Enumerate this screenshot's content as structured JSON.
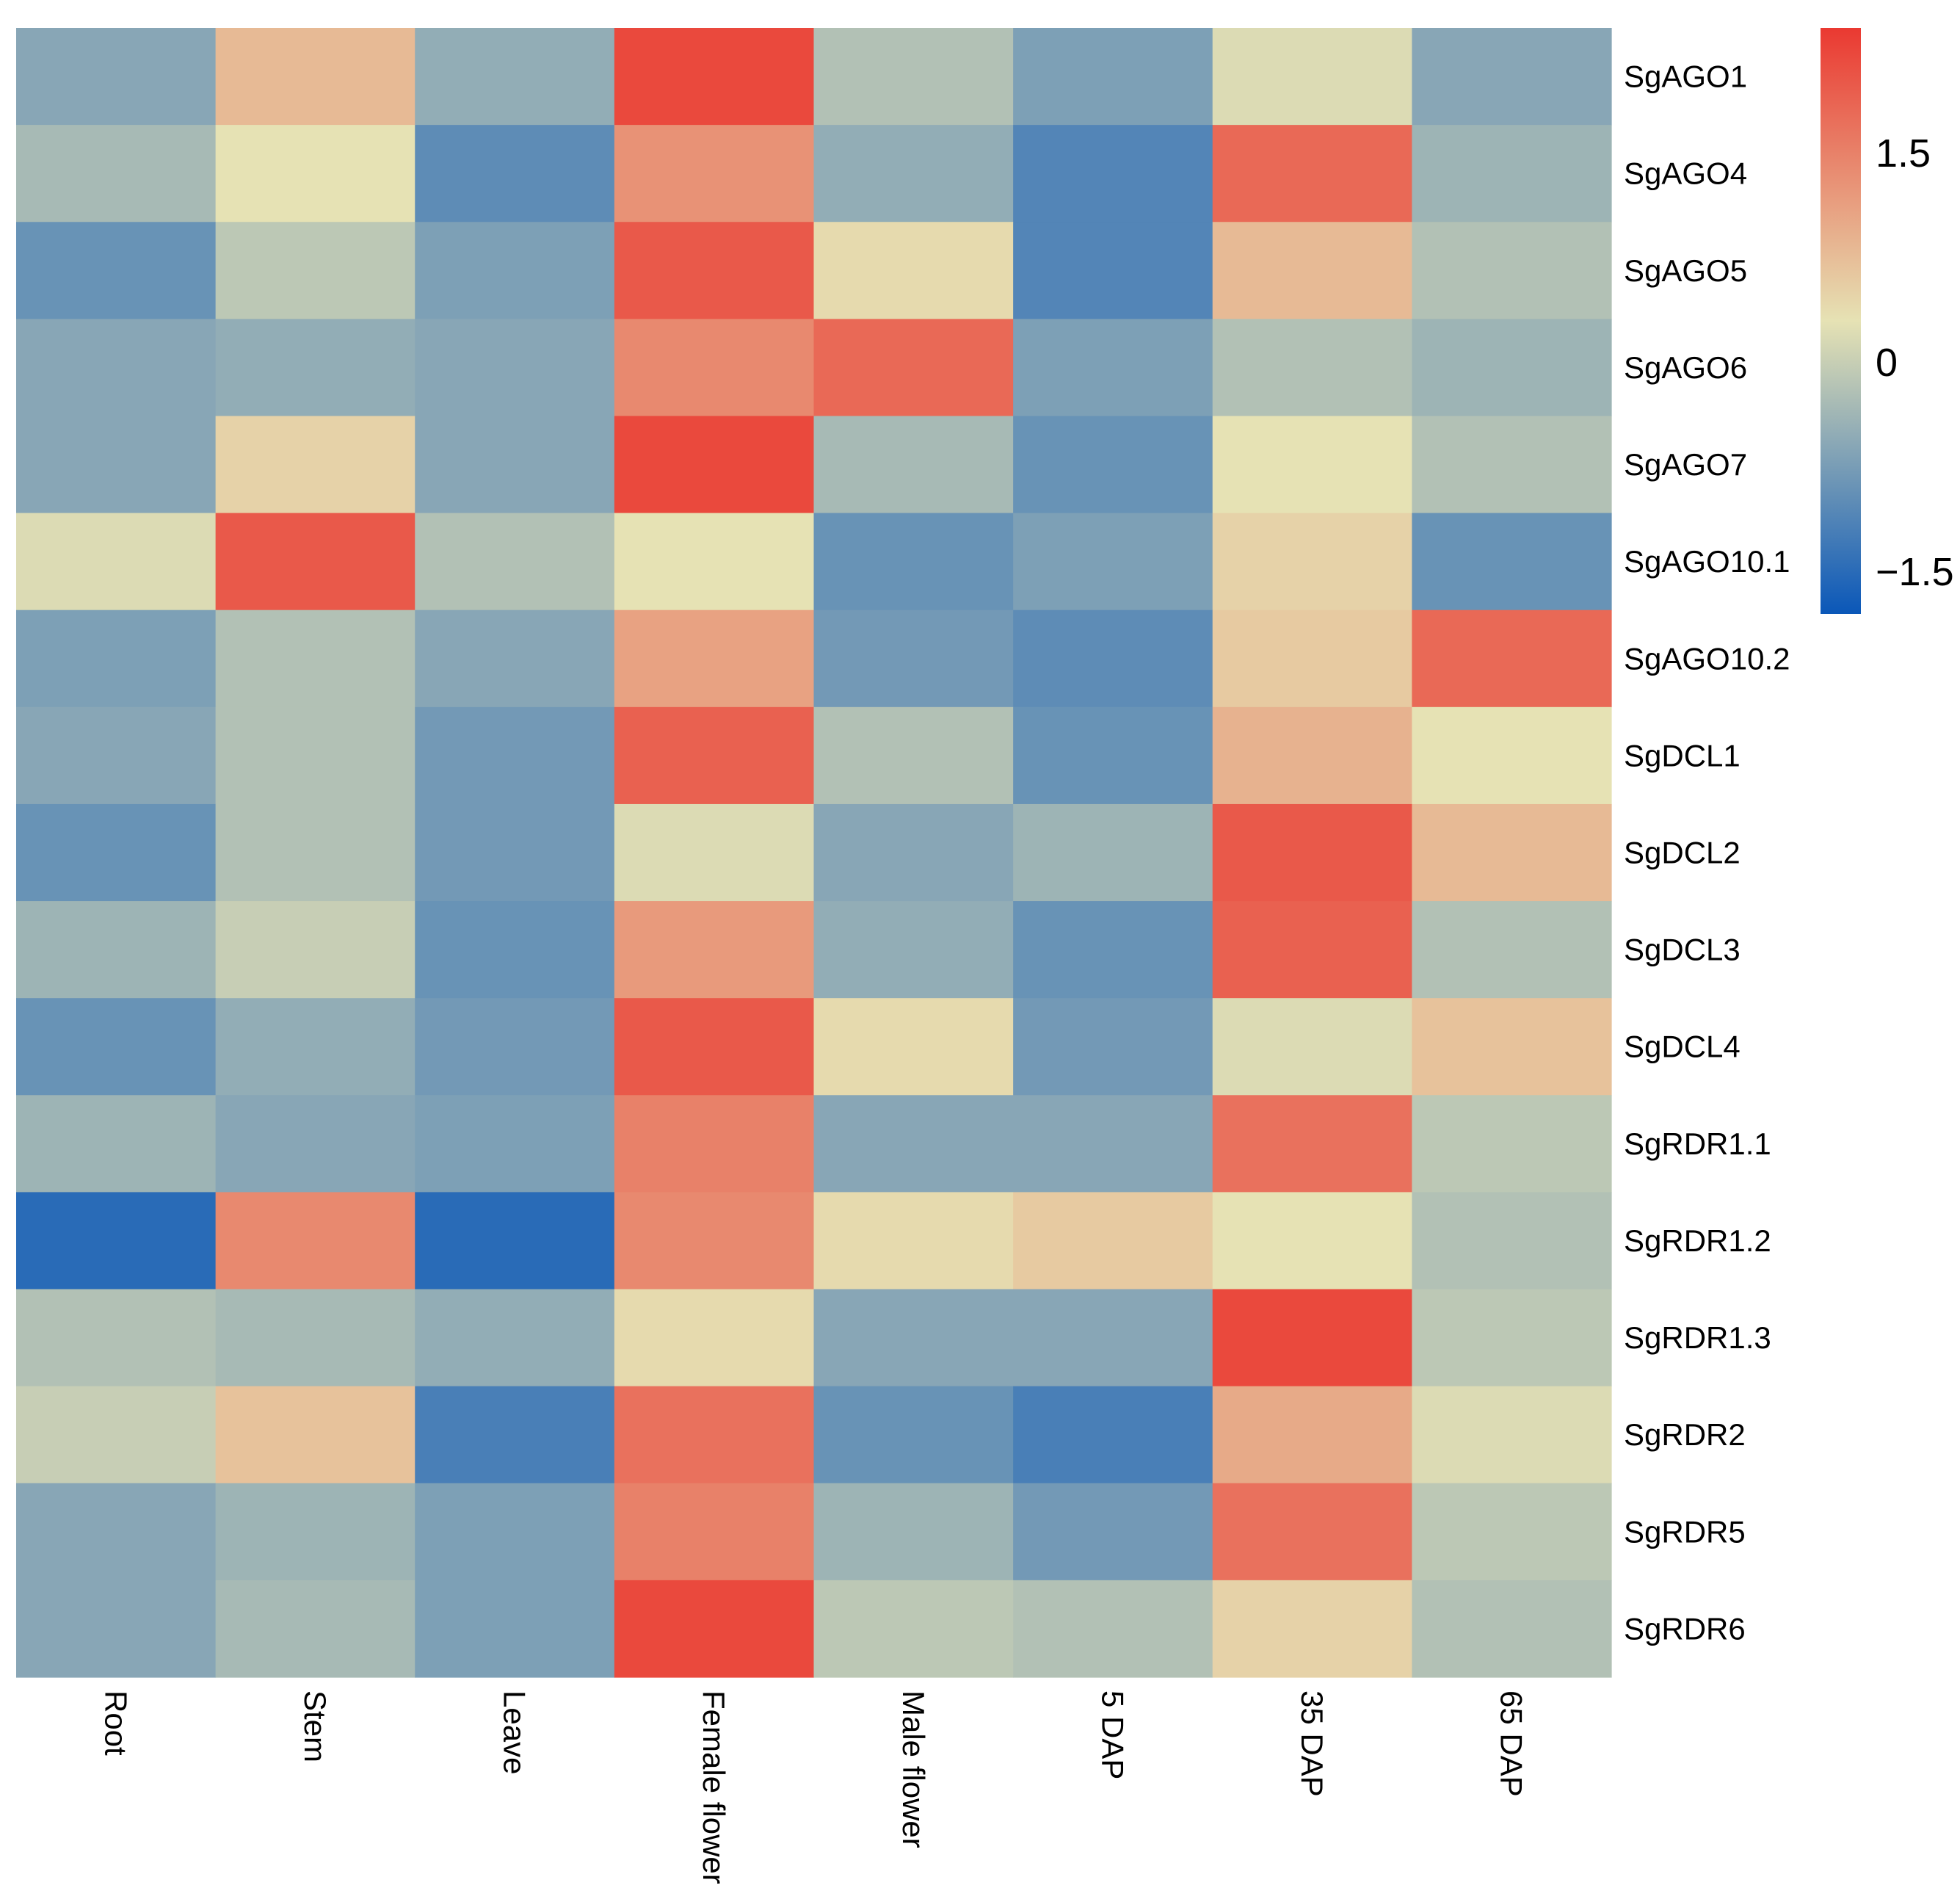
{
  "chart_data": {
    "type": "heatmap",
    "title": "",
    "xlabel": "",
    "ylabel": "",
    "columns": [
      "Root",
      "Stem",
      "Leave",
      "Female flower",
      "Male flower",
      "5 DAP",
      "35 DAP",
      "65 DAP"
    ],
    "rows": [
      "SgAGO1",
      "SgAGO4",
      "SgAGO5",
      "SgAGO6",
      "SgAGO7",
      "SgAGO10.1",
      "SgAGO10.2",
      "SgDCL1",
      "SgDCL2",
      "SgDCL3",
      "SgDCL4",
      "SgRDR1.1",
      "SgRDR1.2",
      "SgRDR1.3",
      "SgRDR2",
      "SgRDR5",
      "SgRDR6"
    ],
    "values": [
      [
        -0.6,
        0.8,
        -0.5,
        2.2,
        -0.2,
        -0.7,
        0.2,
        -0.6
      ],
      [
        -0.3,
        0.3,
        -1.0,
        1.3,
        -0.5,
        -1.1,
        1.8,
        -0.4
      ],
      [
        -0.9,
        -0.1,
        -0.7,
        2.0,
        0.4,
        -1.1,
        0.8,
        -0.2
      ],
      [
        -0.6,
        -0.5,
        -0.6,
        1.4,
        1.8,
        -0.7,
        -0.2,
        -0.4
      ],
      [
        -0.6,
        0.5,
        -0.6,
        2.2,
        -0.3,
        -0.9,
        0.3,
        -0.2
      ],
      [
        0.2,
        2.0,
        -0.2,
        0.3,
        -0.9,
        -0.7,
        0.5,
        -0.9
      ],
      [
        -0.7,
        -0.2,
        -0.6,
        1.1,
        -0.8,
        -1.0,
        0.6,
        1.8
      ],
      [
        -0.6,
        -0.2,
        -0.8,
        1.9,
        -0.2,
        -0.9,
        0.9,
        0.3
      ],
      [
        -0.9,
        -0.2,
        -0.8,
        0.2,
        -0.6,
        -0.4,
        2.0,
        0.8
      ],
      [
        -0.4,
        0.0,
        -0.9,
        1.2,
        -0.5,
        -0.9,
        1.9,
        -0.2
      ],
      [
        -0.9,
        -0.5,
        -0.8,
        2.0,
        0.4,
        -0.8,
        0.2,
        0.7
      ],
      [
        -0.4,
        -0.6,
        -0.7,
        1.5,
        -0.6,
        -0.6,
        1.7,
        -0.1
      ],
      [
        -1.5,
        1.4,
        -1.5,
        1.4,
        0.4,
        0.6,
        0.3,
        -0.2
      ],
      [
        -0.2,
        -0.3,
        -0.5,
        0.4,
        -0.6,
        -0.6,
        2.2,
        -0.1
      ],
      [
        0.0,
        0.7,
        -1.2,
        1.7,
        -0.9,
        -1.2,
        1.0,
        0.2
      ],
      [
        -0.6,
        -0.4,
        -0.7,
        1.5,
        -0.4,
        -0.8,
        1.7,
        -0.1
      ],
      [
        -0.6,
        -0.3,
        -0.7,
        2.2,
        -0.1,
        -0.2,
        0.5,
        -0.2
      ]
    ],
    "colorbar": {
      "min": -1.8,
      "max": 2.4,
      "ticks": [
        {
          "value": 1.5,
          "label": "1.5"
        },
        {
          "value": 0,
          "label": "0"
        },
        {
          "value": -1.5,
          "label": "−1.5"
        }
      ],
      "colors": {
        "low": "#0a57b8",
        "mid": "#e6e2b4",
        "high": "#ea3931"
      }
    },
    "legend_position": "top-right"
  }
}
